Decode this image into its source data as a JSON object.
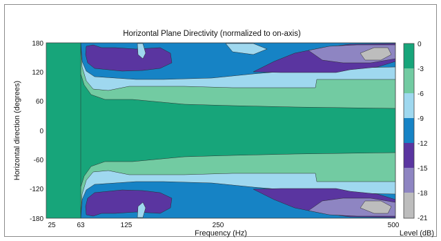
{
  "chart_data": {
    "type": "heatmap",
    "title": "Horizontal Plane Directivity (normalized to on-axis)",
    "xlabel": "Frequency (Hz)",
    "ylabel": "Horizontal direction (degrees)",
    "x_ticks": [
      "25",
      "63",
      "125",
      "250",
      "500"
    ],
    "y_ticks": [
      "180",
      "120",
      "60",
      "0",
      "-60",
      "-120",
      "-180"
    ],
    "xlim": [
      25,
      500
    ],
    "ylim": [
      -180,
      180
    ],
    "colorbar": {
      "label": "Level (dB)",
      "ticks": [
        "0",
        "-3",
        "-6",
        "-9",
        "-12",
        "-15",
        "-18",
        "-21"
      ],
      "levels": [
        {
          "range": [
            -3,
            0
          ],
          "color": "#17a57a"
        },
        {
          "range": [
            -6,
            -3
          ],
          "color": "#72cba2"
        },
        {
          "range": [
            -9,
            -6
          ],
          "color": "#9fd8ef"
        },
        {
          "range": [
            -12,
            -9
          ],
          "color": "#1683c5"
        },
        {
          "range": [
            -15,
            -12
          ],
          "color": "#5a35a0"
        },
        {
          "range": [
            -18,
            -15
          ],
          "color": "#8e85c2"
        },
        {
          "range": [
            -21,
            -18
          ],
          "color": "#bdbdbd"
        }
      ]
    },
    "contours": {
      "note_levels_dB": [
        -3,
        -6,
        -9,
        -12,
        -15,
        -18
      ],
      "upper_half_boundaries_deg": [
        {
          "level": -3,
          "x": [
            25,
            55,
            58,
            63,
            70,
            90,
            125,
            160,
            250,
            300,
            380,
            430,
            500
          ],
          "y": [
            180,
            180,
            120,
            75,
            68,
            64,
            62,
            61,
            58,
            56,
            54,
            53,
            52
          ]
        },
        {
          "level": -6,
          "x": [
            25,
            55,
            58,
            63,
            70,
            90,
            125,
            150,
            250,
            320,
            360,
            400,
            410,
            500
          ],
          "y": [
            180,
            180,
            170,
            115,
            98,
            90,
            86,
            84,
            82,
            82,
            82,
            82,
            98,
            98
          ]
        },
        {
          "level": -9,
          "x": [
            25,
            55,
            58,
            63,
            70,
            90,
            125,
            150,
            200,
            250,
            320,
            380,
            430,
            500
          ],
          "y": [
            180,
            180,
            178,
            130,
            110,
            104,
            104,
            108,
            108,
            110,
            118,
            122,
            118,
            116
          ]
        },
        {
          "level": -12,
          "x": [
            58,
            63,
            70,
            100,
            125,
            150,
            200,
            250,
            300,
            340,
            400,
            450,
            500
          ],
          "y": [
            180,
            160,
            150,
            155,
            132,
            130,
            165,
            160,
            152,
            140,
            160,
            150,
            135
          ]
        },
        {
          "level": -15,
          "x": [
            65,
            70,
            100,
            125,
            150,
            330,
            380,
            430,
            480,
            500
          ],
          "y": [
            178,
            150,
            145,
            120,
            150,
            135,
            160,
            175,
            172,
            168
          ]
        },
        {
          "level": -18,
          "x": [
            370,
            420,
            460,
            500
          ],
          "y": [
            172,
            158,
            150,
            158
          ]
        }
      ]
    }
  }
}
